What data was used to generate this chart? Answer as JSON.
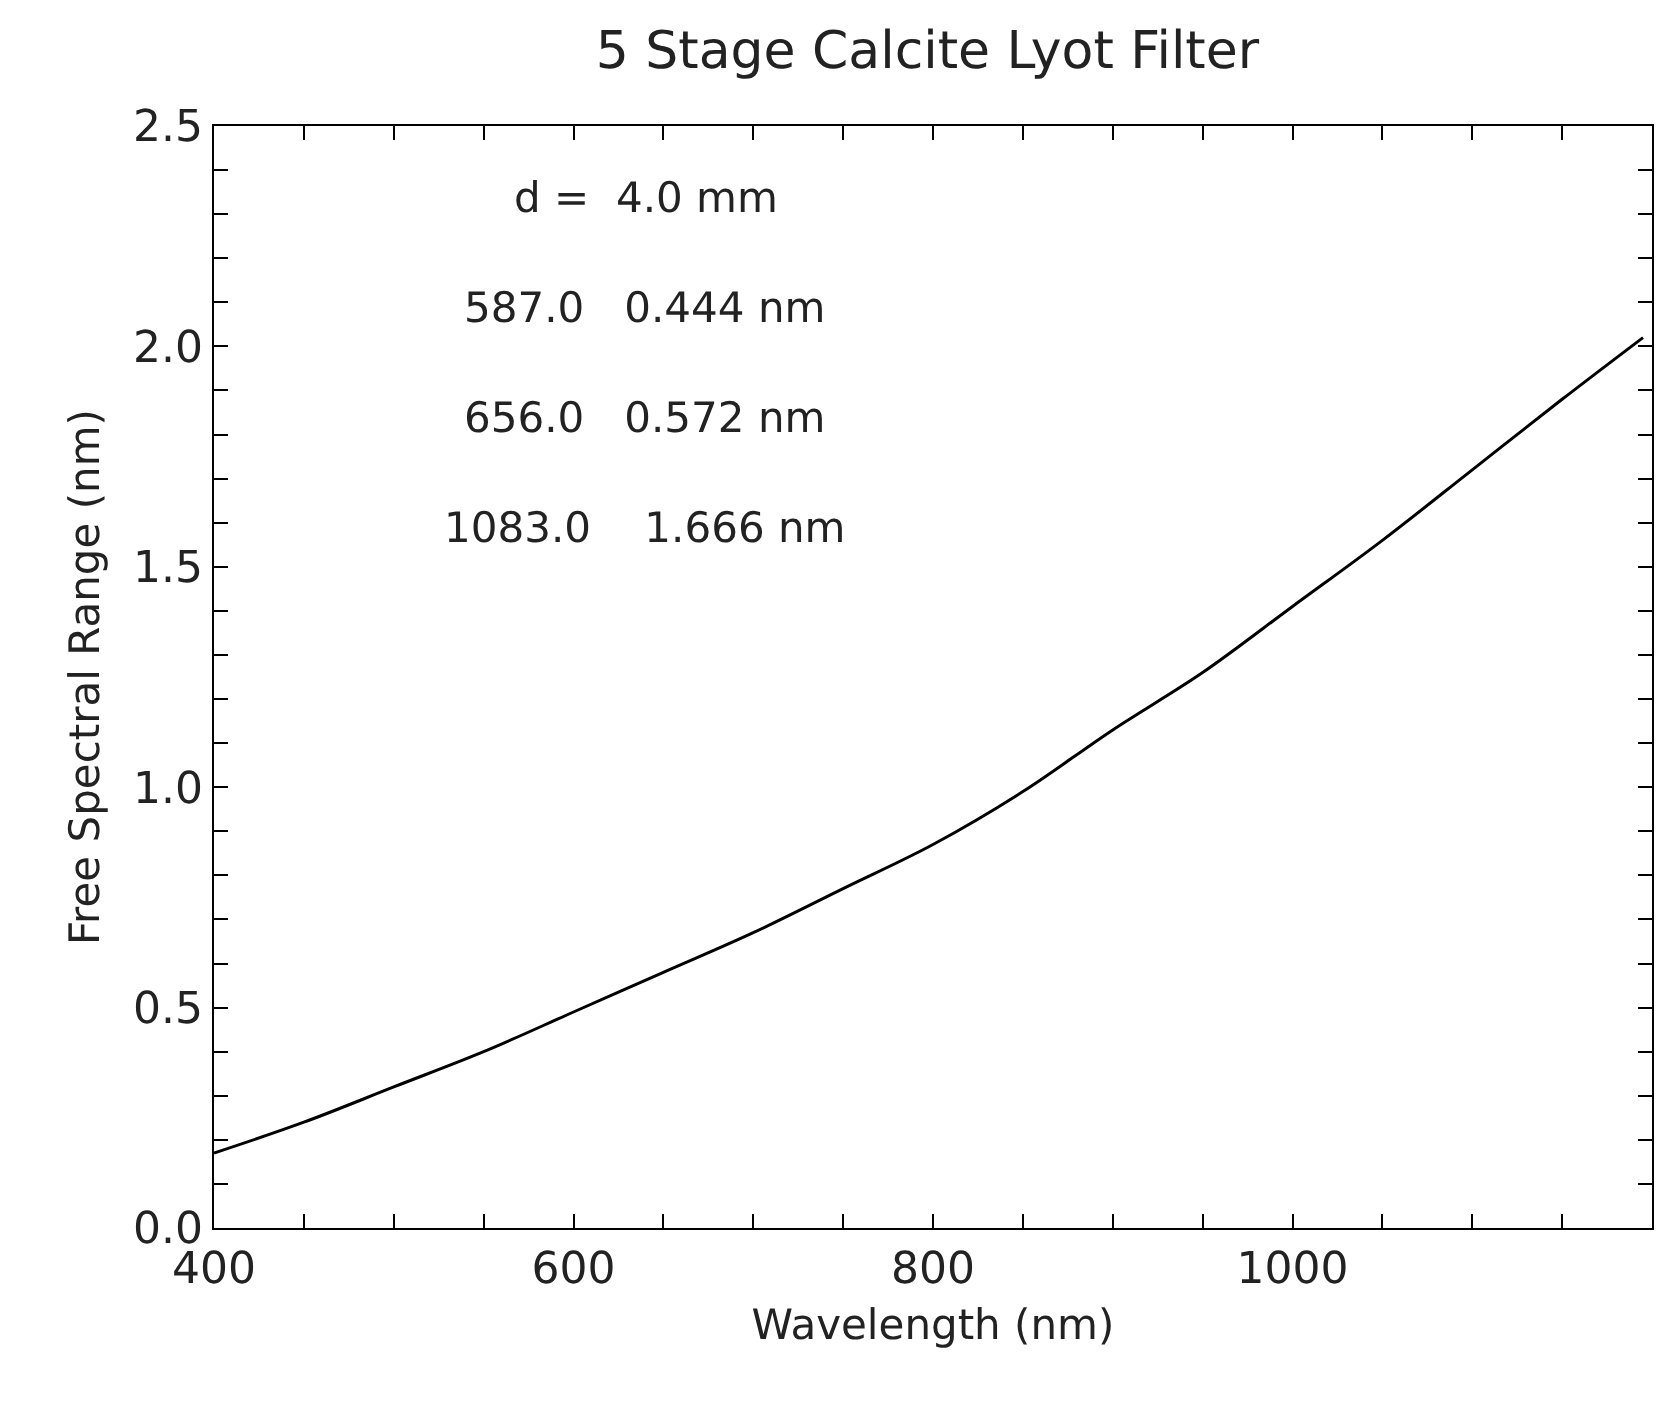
{
  "chart_data": {
    "type": "line",
    "title": "5 Stage Calcite Lyot Filter",
    "xlabel": "Wavelength (nm)",
    "ylabel": "Free Spectral Range (nm)",
    "annotations": [
      "d =  4.0 mm",
      "587.0   0.444 nm",
      "656.0   0.572 nm",
      "1083.0    1.666 nm"
    ],
    "x": [
      400,
      450,
      500,
      550,
      600,
      650,
      700,
      750,
      800,
      850,
      900,
      950,
      1000,
      1050,
      1100,
      1150,
      1195
    ],
    "series": [
      {
        "color": "#000000",
        "values": [
          0.17,
          0.24,
          0.32,
          0.4,
          0.49,
          0.58,
          0.67,
          0.77,
          0.87,
          0.99,
          1.13,
          1.26,
          1.41,
          1.56,
          1.72,
          1.88,
          2.02
        ]
      }
    ],
    "xlim": [
      400,
      1200
    ],
    "ylim": [
      0,
      2.5
    ],
    "xticks": [
      400,
      {
        "value": 450,
        "label": null
      },
      {
        "value": 500,
        "label": null
      },
      {
        "value": 550,
        "label": null
      },
      600,
      {
        "value": 650,
        "label": null
      },
      {
        "value": 700,
        "label": null
      },
      {
        "value": 750,
        "label": null
      },
      800,
      {
        "value": 850,
        "label": null
      },
      {
        "value": 900,
        "label": null
      },
      {
        "value": 950,
        "label": null
      },
      1000,
      {
        "value": 1050,
        "label": null
      },
      {
        "value": 1100,
        "label": null
      },
      {
        "value": 1150,
        "label": null
      },
      {
        "value": 1200,
        "label": null
      }
    ],
    "yticks": [
      {
        "value": 0,
        "label": "0.0"
      },
      {
        "value": 0.1,
        "label": null
      },
      {
        "value": 0.2,
        "label": null
      },
      {
        "value": 0.3,
        "label": null
      },
      {
        "value": 0.4,
        "label": null
      },
      {
        "value": 0.5,
        "label": "0.5"
      },
      {
        "value": 0.6,
        "label": null
      },
      {
        "value": 0.7,
        "label": null
      },
      {
        "value": 0.8,
        "label": null
      },
      {
        "value": 0.9,
        "label": null
      },
      {
        "value": 1.0,
        "label": "1.0"
      },
      {
        "value": 1.1,
        "label": null
      },
      {
        "value": 1.2,
        "label": null
      },
      {
        "value": 1.3,
        "label": null
      },
      {
        "value": 1.4,
        "label": null
      },
      {
        "value": 1.5,
        "label": "1.5"
      },
      {
        "value": 1.6,
        "label": null
      },
      {
        "value": 1.7,
        "label": null
      },
      {
        "value": 1.8,
        "label": null
      },
      {
        "value": 1.9,
        "label": null
      },
      {
        "value": 2.0,
        "label": "2.0"
      },
      {
        "value": 2.1,
        "label": null
      },
      {
        "value": 2.2,
        "label": null
      },
      {
        "value": 2.3,
        "label": null
      },
      {
        "value": 2.4,
        "label": null
      },
      {
        "value": 2.5,
        "label": "2.5"
      }
    ],
    "marker": "none",
    "line_style": "solid"
  }
}
